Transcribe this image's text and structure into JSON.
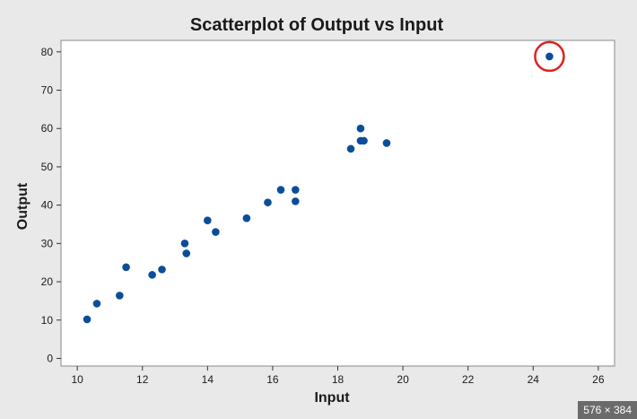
{
  "chart_data": {
    "type": "scatter",
    "title": "Scatterplot of Output vs Input",
    "xlabel": "Input",
    "ylabel": "Output",
    "xlim": [
      9.5,
      26.5
    ],
    "ylim": [
      -2,
      83
    ],
    "xticks": [
      10,
      12,
      14,
      16,
      18,
      20,
      22,
      24,
      26
    ],
    "yticks": [
      0,
      10,
      20,
      30,
      40,
      50,
      60,
      70,
      80
    ],
    "grid": false,
    "points": [
      {
        "x": 10.3,
        "y": 10.2
      },
      {
        "x": 10.6,
        "y": 14.3
      },
      {
        "x": 11.3,
        "y": 16.4
      },
      {
        "x": 11.5,
        "y": 23.8
      },
      {
        "x": 12.3,
        "y": 21.8
      },
      {
        "x": 12.6,
        "y": 23.2
      },
      {
        "x": 13.3,
        "y": 30.0
      },
      {
        "x": 13.35,
        "y": 27.4
      },
      {
        "x": 14.0,
        "y": 36.0
      },
      {
        "x": 14.25,
        "y": 33.0
      },
      {
        "x": 15.2,
        "y": 36.6
      },
      {
        "x": 15.85,
        "y": 40.7
      },
      {
        "x": 16.25,
        "y": 44.0
      },
      {
        "x": 16.7,
        "y": 44.0
      },
      {
        "x": 16.7,
        "y": 41.0
      },
      {
        "x": 18.4,
        "y": 54.7
      },
      {
        "x": 18.7,
        "y": 56.8
      },
      {
        "x": 18.8,
        "y": 56.8
      },
      {
        "x": 18.7,
        "y": 60.0
      },
      {
        "x": 19.5,
        "y": 56.2
      },
      {
        "x": 24.5,
        "y": 78.8
      }
    ],
    "highlight_index": 20,
    "point_color": "#0b4d9a",
    "highlight_color": "#e02020"
  },
  "badge": "576 × 384"
}
